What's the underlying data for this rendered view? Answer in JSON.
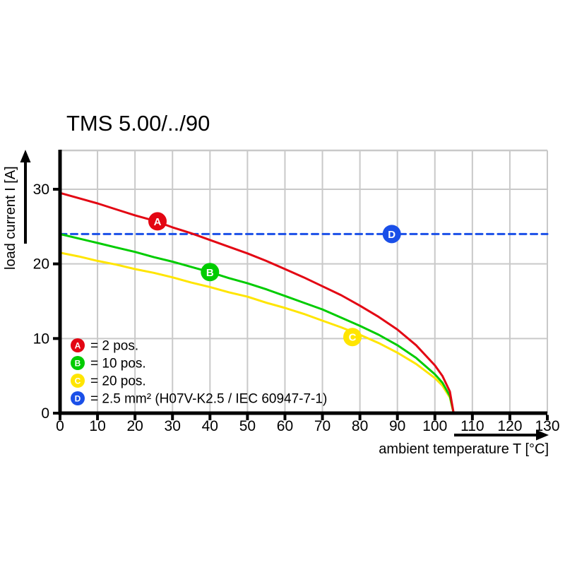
{
  "chart_data": {
    "type": "line",
    "title": "TMS 5.00/../90",
    "xlabel": "ambient temperature T [°C]",
    "ylabel": "load current I [A]",
    "xlim": [
      0,
      130
    ],
    "ylim": [
      0,
      35.2
    ],
    "x_ticks": [
      0,
      10,
      20,
      30,
      40,
      50,
      60,
      70,
      80,
      90,
      100,
      110,
      120,
      130
    ],
    "y_ticks": [
      0,
      10,
      20,
      30
    ],
    "grid": true,
    "legend_position": "inside-bottom-left",
    "series": [
      {
        "id": "A",
        "name": "2 pos.",
        "color": "#e30613",
        "style": "solid",
        "points": [
          [
            0,
            29.5
          ],
          [
            5,
            28.8
          ],
          [
            10,
            28.1
          ],
          [
            15,
            27.3
          ],
          [
            20,
            26.5
          ],
          [
            25,
            25.8
          ],
          [
            30,
            24.9
          ],
          [
            35,
            24.1
          ],
          [
            40,
            23.2
          ],
          [
            45,
            22.3
          ],
          [
            50,
            21.4
          ],
          [
            55,
            20.4
          ],
          [
            60,
            19.3
          ],
          [
            65,
            18.2
          ],
          [
            70,
            17.0
          ],
          [
            75,
            15.8
          ],
          [
            80,
            14.4
          ],
          [
            85,
            12.9
          ],
          [
            90,
            11.2
          ],
          [
            95,
            9.1
          ],
          [
            100,
            6.4
          ],
          [
            102,
            5.0
          ],
          [
            104,
            2.9
          ],
          [
            105,
            0
          ]
        ],
        "marker": {
          "label": "A",
          "x": 26,
          "y": 25.7
        }
      },
      {
        "id": "B",
        "name": "10 pos.",
        "color": "#00cc00",
        "style": "solid",
        "points": [
          [
            0,
            24.0
          ],
          [
            5,
            23.4
          ],
          [
            10,
            22.8
          ],
          [
            15,
            22.2
          ],
          [
            20,
            21.6
          ],
          [
            25,
            20.9
          ],
          [
            30,
            20.3
          ],
          [
            35,
            19.6
          ],
          [
            40,
            18.9
          ],
          [
            45,
            18.1
          ],
          [
            50,
            17.4
          ],
          [
            55,
            16.6
          ],
          [
            60,
            15.7
          ],
          [
            65,
            14.8
          ],
          [
            70,
            13.9
          ],
          [
            75,
            12.8
          ],
          [
            80,
            11.7
          ],
          [
            85,
            10.5
          ],
          [
            90,
            9.1
          ],
          [
            95,
            7.4
          ],
          [
            100,
            5.2
          ],
          [
            102,
            4.1
          ],
          [
            104,
            2.3
          ],
          [
            105,
            0
          ]
        ],
        "marker": {
          "label": "B",
          "x": 40,
          "y": 18.9
        }
      },
      {
        "id": "C",
        "name": "20 pos.",
        "color": "#ffe500",
        "style": "solid",
        "points": [
          [
            0,
            21.5
          ],
          [
            5,
            21.0
          ],
          [
            10,
            20.4
          ],
          [
            15,
            19.9
          ],
          [
            20,
            19.3
          ],
          [
            25,
            18.8
          ],
          [
            30,
            18.2
          ],
          [
            35,
            17.5
          ],
          [
            40,
            16.9
          ],
          [
            45,
            16.2
          ],
          [
            50,
            15.6
          ],
          [
            55,
            14.8
          ],
          [
            60,
            14.1
          ],
          [
            65,
            13.3
          ],
          [
            70,
            12.4
          ],
          [
            75,
            11.5
          ],
          [
            80,
            10.5
          ],
          [
            85,
            9.4
          ],
          [
            90,
            8.1
          ],
          [
            95,
            6.6
          ],
          [
            100,
            4.7
          ],
          [
            102,
            3.7
          ],
          [
            104,
            2.1
          ],
          [
            105,
            0
          ]
        ],
        "marker": {
          "label": "C",
          "x": 78,
          "y": 10.2
        }
      },
      {
        "id": "D",
        "name": "2.5 mm² (H07V-K2.5 / IEC 60947-7-1)",
        "color": "#1a4fe8",
        "style": "dashed",
        "points": [
          [
            0,
            24
          ],
          [
            130,
            24
          ]
        ],
        "marker": {
          "label": "D",
          "x": 88.5,
          "y": 24
        }
      }
    ],
    "legend": [
      {
        "label": "A",
        "color": "#e30613",
        "text": "= 2 pos."
      },
      {
        "label": "B",
        "color": "#00cc00",
        "text": "= 10 pos."
      },
      {
        "label": "C",
        "color": "#ffe500",
        "text": "= 20 pos."
      },
      {
        "label": "D",
        "color": "#1a4fe8",
        "text": "= 2.5 mm² (H07V-K2.5 / IEC 60947-7-1)"
      }
    ]
  },
  "colors": {
    "background": "#ffffff",
    "grid": "#c9c9c9",
    "axis": "#000000",
    "marker_letter": "#ffffff"
  }
}
